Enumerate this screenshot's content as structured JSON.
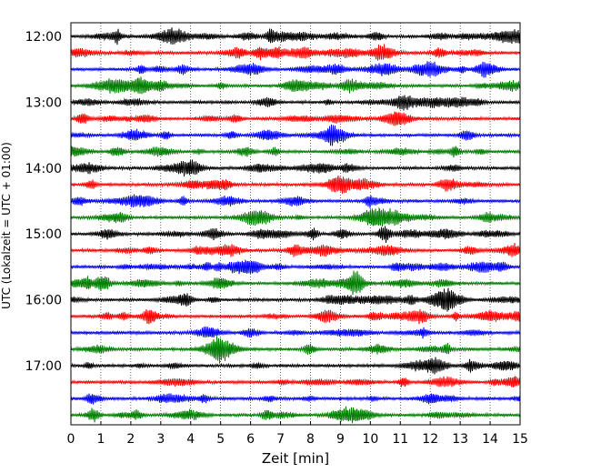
{
  "chart_data": {
    "type": "line",
    "title": "",
    "xlabel": "Zeit  [min]",
    "ylabel": "UTC (Lokalzeit = UTC + 01:00)",
    "xlim": [
      0,
      15
    ],
    "x_ticks": [
      "0",
      "1",
      "2",
      "3",
      "4",
      "5",
      "6",
      "7",
      "8",
      "9",
      "10",
      "11",
      "12",
      "13",
      "14",
      "15"
    ],
    "y_ticks": [
      "12:00",
      "13:00",
      "14:00",
      "15:00",
      "16:00",
      "17:00"
    ],
    "grid": "vertical dotted at each minute",
    "color_cycle": [
      "#000000",
      "#ff0000",
      "#0000ff",
      "#007f00"
    ],
    "trace_interval_min": 15,
    "series": [
      {
        "start": "12:00",
        "color": "#000000"
      },
      {
        "start": "12:15",
        "color": "#ff0000"
      },
      {
        "start": "12:30",
        "color": "#0000ff"
      },
      {
        "start": "12:45",
        "color": "#007f00"
      },
      {
        "start": "13:00",
        "color": "#000000"
      },
      {
        "start": "13:15",
        "color": "#ff0000"
      },
      {
        "start": "13:30",
        "color": "#0000ff"
      },
      {
        "start": "13:45",
        "color": "#007f00"
      },
      {
        "start": "14:00",
        "color": "#000000"
      },
      {
        "start": "14:15",
        "color": "#ff0000"
      },
      {
        "start": "14:30",
        "color": "#0000ff"
      },
      {
        "start": "14:45",
        "color": "#007f00"
      },
      {
        "start": "15:00",
        "color": "#000000"
      },
      {
        "start": "15:15",
        "color": "#ff0000"
      },
      {
        "start": "15:30",
        "color": "#0000ff"
      },
      {
        "start": "15:45",
        "color": "#007f00"
      },
      {
        "start": "16:00",
        "color": "#000000"
      },
      {
        "start": "16:15",
        "color": "#ff0000"
      },
      {
        "start": "16:30",
        "color": "#0000ff"
      },
      {
        "start": "16:45",
        "color": "#007f00"
      },
      {
        "start": "17:00",
        "color": "#000000"
      },
      {
        "start": "17:15",
        "color": "#ff0000"
      },
      {
        "start": "17:30",
        "color": "#0000ff"
      },
      {
        "start": "17:45",
        "color": "#007f00"
      }
    ]
  }
}
